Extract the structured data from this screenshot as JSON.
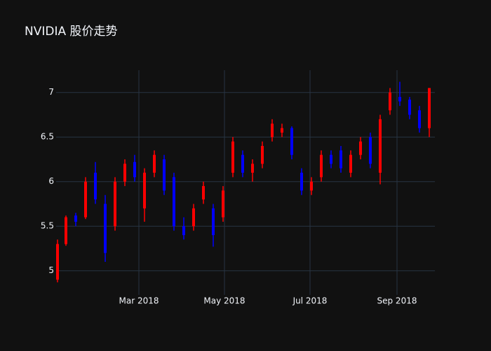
{
  "chart_data": {
    "type": "candlestick",
    "title": "NVIDIA 股价走势",
    "x": [
      "2018-01-02",
      "2018-01-08",
      "2018-01-15",
      "2018-01-22",
      "2018-01-29",
      "2018-02-05",
      "2018-02-12",
      "2018-02-19",
      "2018-02-26",
      "2018-03-05",
      "2018-03-12",
      "2018-03-19",
      "2018-03-26",
      "2018-04-02",
      "2018-04-09",
      "2018-04-16",
      "2018-04-23",
      "2018-04-30",
      "2018-05-07",
      "2018-05-14",
      "2018-05-21",
      "2018-05-28",
      "2018-06-04",
      "2018-06-11",
      "2018-06-18",
      "2018-06-25",
      "2018-07-02",
      "2018-07-09",
      "2018-07-16",
      "2018-07-23",
      "2018-07-30",
      "2018-08-06",
      "2018-08-13",
      "2018-08-20",
      "2018-08-27",
      "2018-09-03",
      "2018-09-10",
      "2018-09-17",
      "2018-09-24"
    ],
    "open": [
      4.9,
      5.3,
      5.62,
      5.6,
      6.1,
      5.75,
      5.5,
      6.0,
      6.22,
      5.7,
      6.1,
      6.25,
      6.05,
      5.5,
      5.5,
      5.8,
      5.7,
      5.6,
      6.1,
      6.3,
      6.1,
      6.2,
      6.5,
      6.55,
      6.6,
      6.1,
      5.9,
      6.05,
      6.3,
      6.35,
      6.1,
      6.3,
      6.5,
      6.1,
      6.8,
      6.95,
      6.92,
      6.8,
      6.6
    ],
    "high": [
      5.35,
      5.62,
      5.65,
      6.05,
      6.22,
      5.85,
      6.05,
      6.25,
      6.3,
      6.15,
      6.35,
      6.3,
      6.1,
      5.6,
      5.75,
      6.0,
      5.75,
      5.95,
      6.5,
      6.35,
      6.25,
      6.45,
      6.7,
      6.65,
      6.62,
      6.15,
      6.05,
      6.35,
      6.35,
      6.4,
      6.35,
      6.5,
      6.55,
      6.75,
      7.05,
      7.12,
      6.95,
      6.85,
      7.05
    ],
    "low": [
      4.87,
      5.28,
      5.5,
      5.58,
      5.75,
      5.1,
      5.45,
      5.95,
      6.0,
      5.55,
      6.05,
      5.85,
      5.45,
      5.35,
      5.45,
      5.75,
      5.27,
      5.55,
      6.05,
      6.05,
      6.0,
      6.15,
      6.45,
      6.5,
      6.25,
      5.85,
      5.85,
      6.0,
      6.15,
      6.1,
      6.05,
      6.25,
      6.15,
      5.97,
      6.75,
      6.85,
      6.7,
      6.55,
      6.5
    ],
    "close": [
      5.3,
      5.6,
      5.55,
      6.0,
      5.8,
      5.2,
      6.0,
      6.2,
      6.05,
      6.1,
      6.3,
      5.9,
      5.5,
      5.4,
      5.7,
      5.95,
      5.4,
      5.9,
      6.45,
      6.1,
      6.2,
      6.4,
      6.65,
      6.6,
      6.3,
      5.9,
      6.0,
      6.3,
      6.2,
      6.15,
      6.3,
      6.45,
      6.2,
      6.7,
      7.0,
      6.9,
      6.75,
      6.6,
      7.05
    ],
    "increasing_color": "#ff0000",
    "decreasing_color": "#0000ff",
    "xlim": [
      "2018-01-01",
      "2018-09-28"
    ],
    "xticks": [
      {
        "value": "2018-03-01",
        "label": "Mar 2018"
      },
      {
        "value": "2018-05-01",
        "label": "May 2018"
      },
      {
        "value": "2018-07-01",
        "label": "Jul 2018"
      },
      {
        "value": "2018-09-01",
        "label": "Sep 2018"
      }
    ],
    "ylim": [
      4.73,
      7.25
    ],
    "yticks": [
      5,
      5.5,
      6,
      6.5,
      7
    ],
    "grid": true
  }
}
